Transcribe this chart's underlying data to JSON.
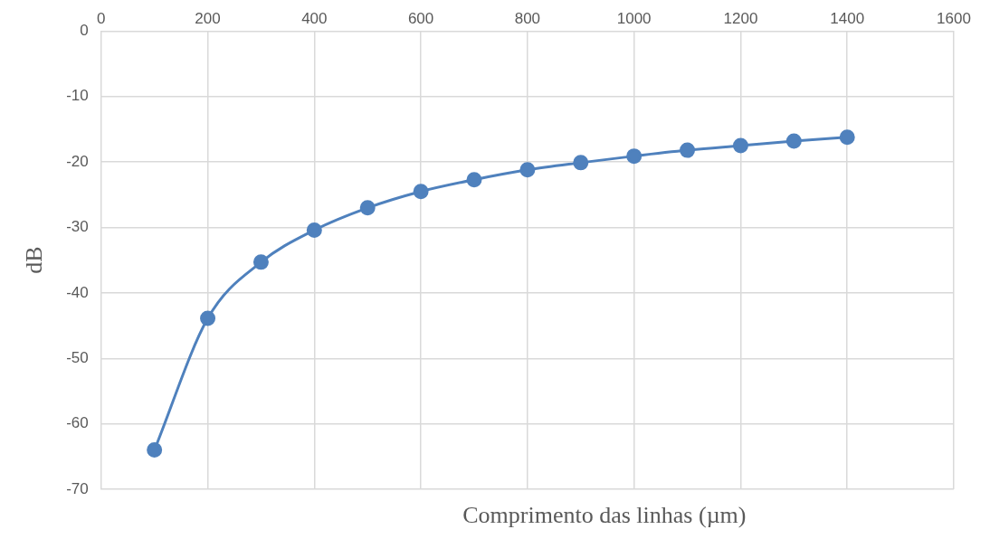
{
  "chart_data": {
    "type": "line",
    "xlabel": "Comprimento das linhas (µm)",
    "ylabel": "dB",
    "x": [
      100,
      200,
      300,
      400,
      500,
      600,
      700,
      800,
      900,
      1000,
      1100,
      1200,
      1300,
      1400
    ],
    "series": [
      {
        "color": "#4f81bd",
        "values": [
          -64.0,
          -43.9,
          -35.3,
          -30.4,
          -27.0,
          -24.5,
          -22.7,
          -21.2,
          -20.1,
          -19.1,
          -18.2,
          -17.5,
          -16.8,
          -16.2
        ]
      }
    ],
    "xlim": [
      0,
      1600
    ],
    "xticks": [
      0,
      200,
      400,
      600,
      800,
      1000,
      1200,
      1400,
      1600
    ],
    "ylim": [
      -70,
      0
    ],
    "yticks": [
      -70,
      -60,
      -50,
      -40,
      -30,
      -20,
      -10,
      0
    ],
    "grid": true,
    "legend": false,
    "marker": "circle",
    "line_style": "solid"
  }
}
